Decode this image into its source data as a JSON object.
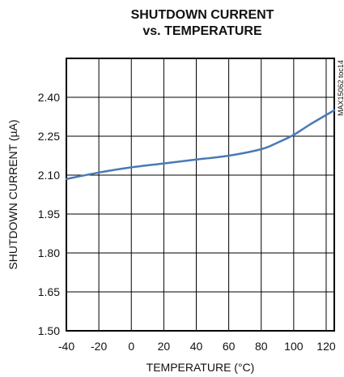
{
  "chart_data": {
    "type": "line",
    "title_line1": "SHUTDOWN CURRENT",
    "title_line2": "vs. TEMPERATURE",
    "xlabel": "TEMPERATURE (°C)",
    "ylabel": "SHUTDOWN CURRENT (µA)",
    "watermark": "MAX15062 toc14",
    "xlim": [
      -40,
      125
    ],
    "ylim": [
      1.5,
      2.55
    ],
    "x_ticks": [
      -40,
      -20,
      0,
      20,
      40,
      60,
      80,
      100,
      120
    ],
    "x_tick_labels": [
      "-40",
      "-20",
      "0",
      "20",
      "40",
      "60",
      "80",
      "100",
      "120"
    ],
    "y_ticks": [
      1.5,
      1.65,
      1.8,
      1.95,
      2.1,
      2.25,
      2.4
    ],
    "y_tick_labels": [
      "1.50",
      "1.65",
      "1.80",
      "1.95",
      "2.10",
      "2.25",
      "2.40"
    ],
    "grid": true,
    "series": [
      {
        "color": "#4a7ab5",
        "x": [
          -40,
          -20,
          0,
          20,
          40,
          60,
          80,
          90,
          100,
          110,
          125
        ],
        "y": [
          2.085,
          2.11,
          2.13,
          2.145,
          2.16,
          2.175,
          2.2,
          2.225,
          2.255,
          2.295,
          2.35
        ]
      }
    ]
  }
}
